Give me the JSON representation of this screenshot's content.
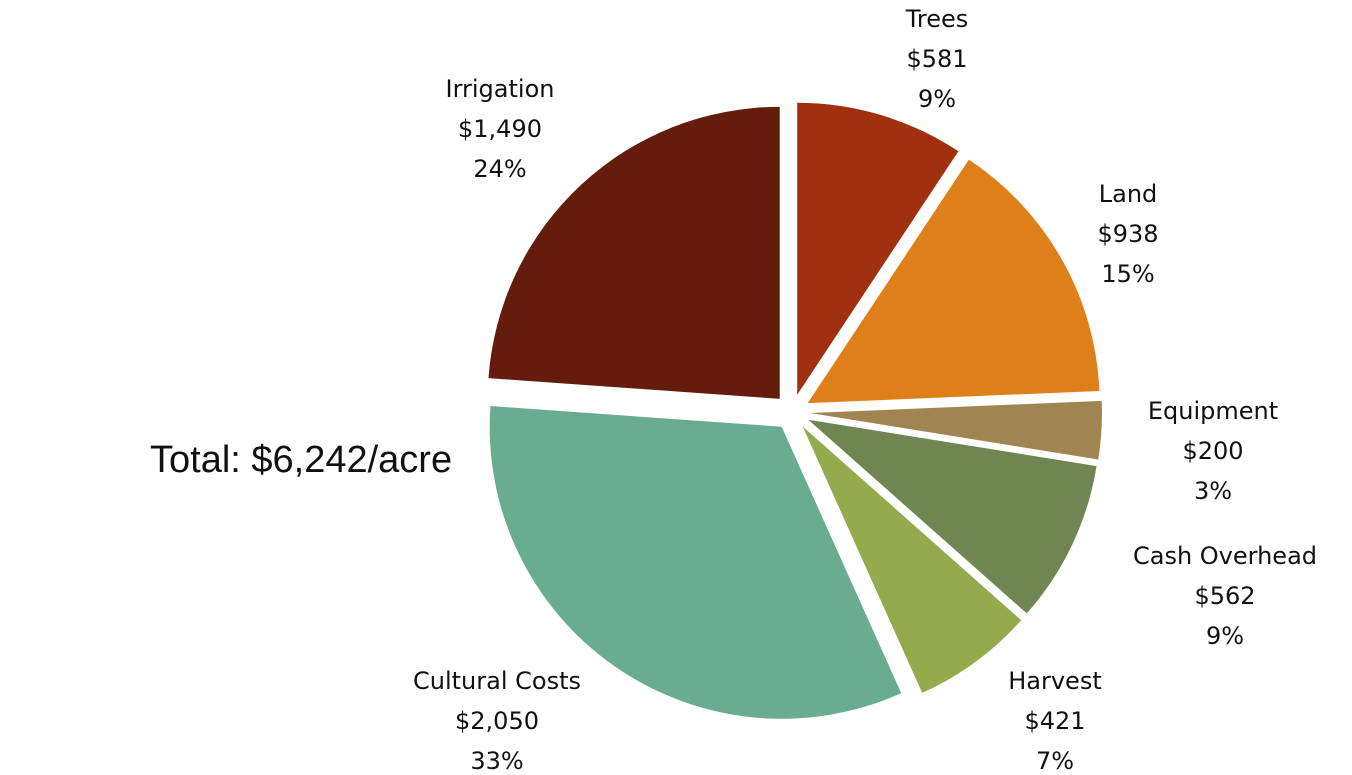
{
  "chart_data": {
    "type": "pie",
    "annotation": "Total: $6,242/acre",
    "categories": [
      "Trees",
      "Land",
      "Equipment",
      "Cash Overhead",
      "Harvest",
      "Cultural Costs",
      "Irrigation"
    ],
    "values": [
      581,
      938,
      200,
      562,
      421,
      2050,
      1490
    ],
    "value_labels": [
      "$581",
      "$938",
      "$200",
      "$562",
      "$421",
      "$2,050",
      "$1,490"
    ],
    "percent_labels": [
      "9%",
      "15%",
      "3%",
      "9%",
      "7%",
      "33%",
      "24%"
    ],
    "colors": [
      "#a0300f",
      "#df7f1a",
      "#a08553",
      "#708652",
      "#93aa4d",
      "#6aac90",
      "#641c0c"
    ]
  }
}
